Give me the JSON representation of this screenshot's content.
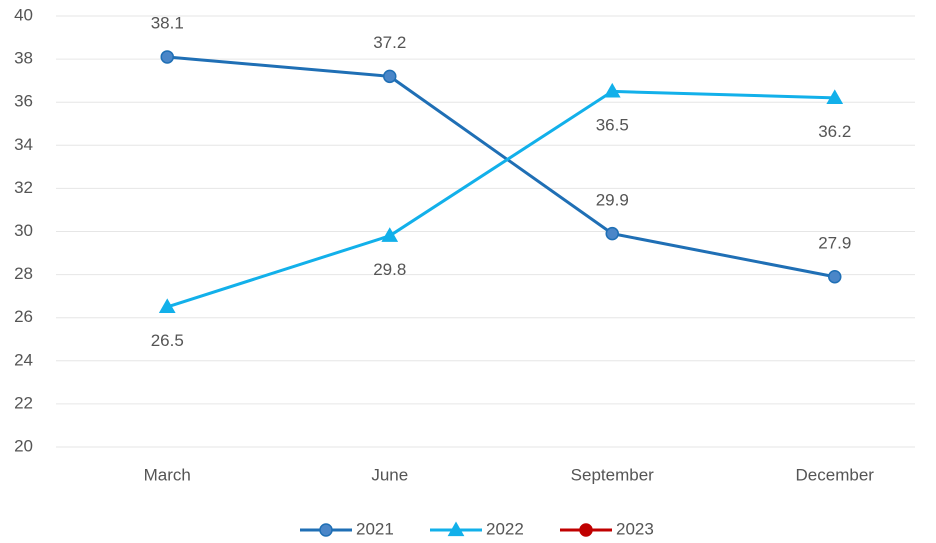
{
  "chart_data": {
    "type": "line",
    "categories": [
      "March",
      "June",
      "September",
      "December"
    ],
    "series": [
      {
        "name": "2021",
        "color": "#1f6fb5",
        "marker": "circle",
        "marker_fill": "#4a86c8",
        "label_position": "above",
        "values": [
          38.1,
          37.2,
          29.9,
          27.9
        ]
      },
      {
        "name": "2022",
        "color": "#12b0ea",
        "marker": "triangle",
        "marker_fill": "#12b0ea",
        "label_position": "below",
        "values": [
          26.5,
          29.8,
          36.5,
          36.2
        ]
      },
      {
        "name": "2023",
        "color": "#c00000",
        "marker": "circle",
        "marker_fill": "#c00000",
        "label_position": "above",
        "values": [
          null,
          null,
          null,
          null
        ]
      }
    ],
    "ylim": [
      20,
      40
    ],
    "yticks": [
      20,
      22,
      24,
      26,
      28,
      30,
      32,
      34,
      36,
      38,
      40
    ],
    "grid": true,
    "legend": "bottom"
  }
}
